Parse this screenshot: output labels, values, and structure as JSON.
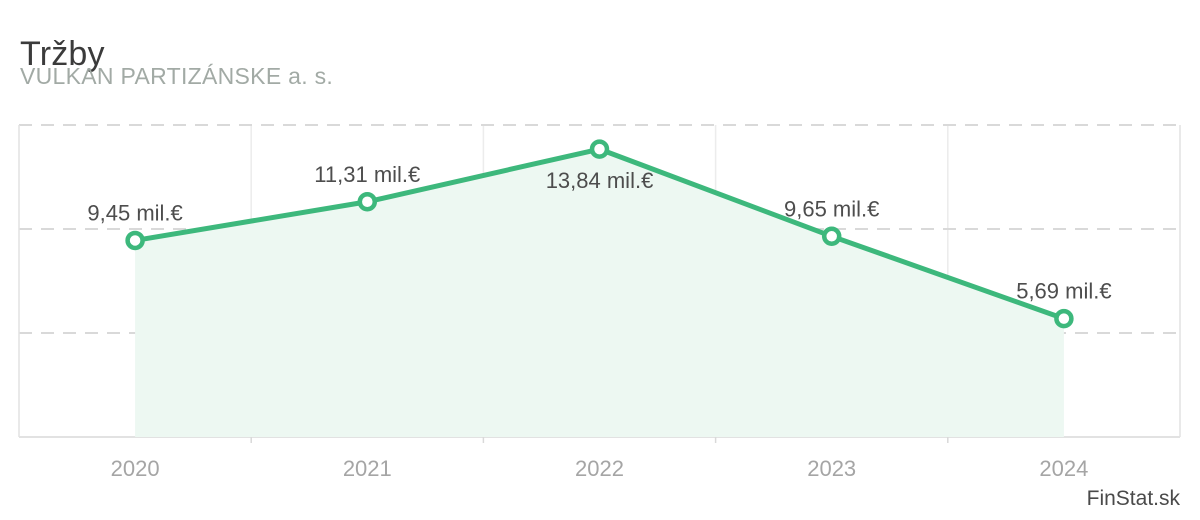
{
  "header": {
    "title": "Tržby",
    "subtitle": "VULKAN PARTIZÁNSKE a. s."
  },
  "watermark": {
    "label": "FinStat.sk"
  },
  "chart_data": {
    "type": "area",
    "title": "Tržby",
    "subtitle": "VULKAN PARTIZÁNSKE a. s.",
    "categories": [
      "2020",
      "2021",
      "2022",
      "2023",
      "2024"
    ],
    "series": [
      {
        "name": "Tržby",
        "values": [
          9.45,
          11.31,
          13.84,
          9.65,
          5.69
        ]
      }
    ],
    "unit": "mil.€",
    "point_labels": [
      "9,45 mil.€",
      "11,31 mil.€",
      "13,84 mil.€",
      "9,65 mil.€",
      "5,69 mil.€"
    ],
    "label_positions": [
      "above",
      "above",
      "below",
      "above",
      "above"
    ],
    "ylim": [
      0,
      15
    ],
    "gridline_values": [
      5,
      10,
      15
    ],
    "grid": true,
    "legend": false,
    "colors": {
      "line": "#3db87c",
      "marker_fill": "#ffffff",
      "area": "#edf8f2",
      "grid_dashed": "#d9d9d9",
      "grid_vertical": "#ececec",
      "border": "#e2e2e2",
      "point_label": "#4d4d4d",
      "axis_label": "#a5a5a5",
      "title": "#3b3b3b",
      "subtitle": "#a2aaa5",
      "watermark": "#4a4a4a"
    }
  }
}
